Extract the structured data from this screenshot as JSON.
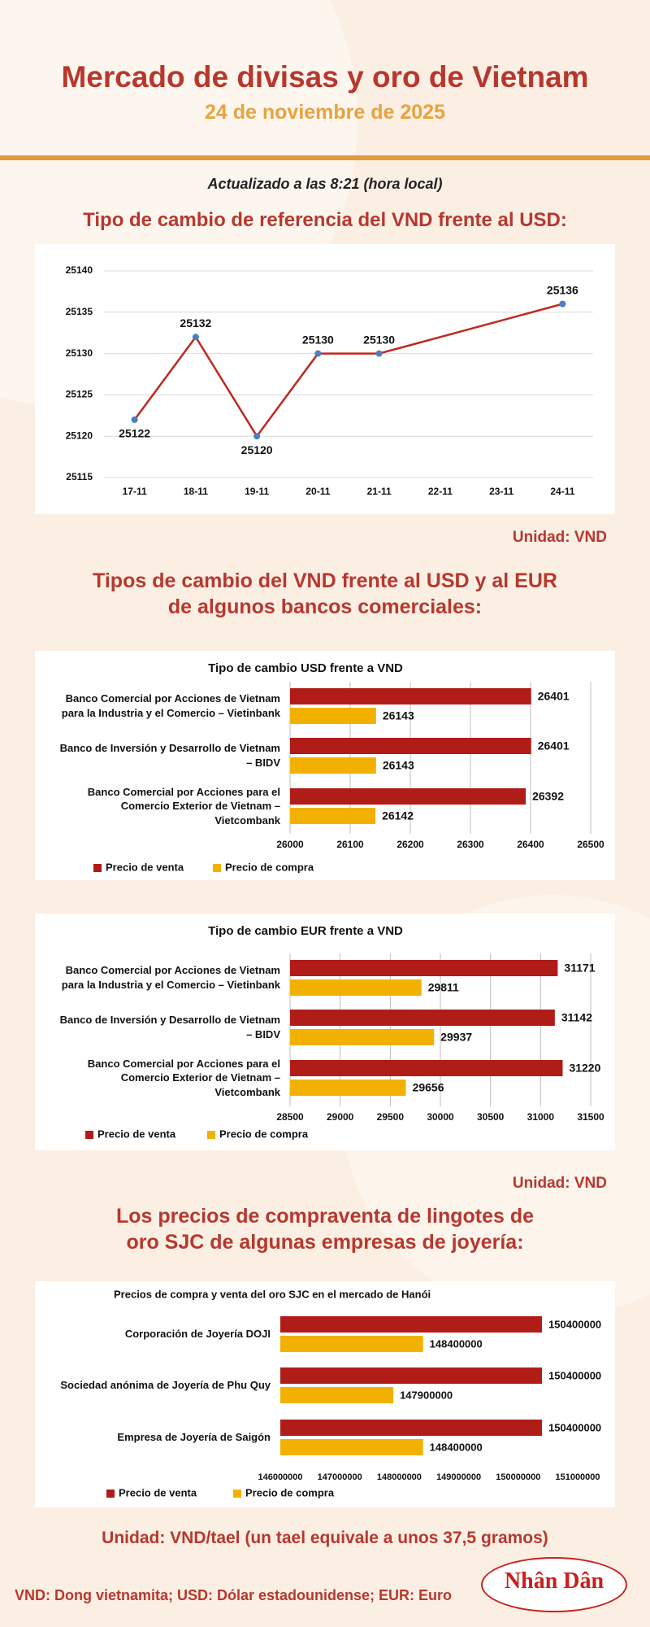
{
  "header": {
    "title": "Mercado de divisas y oro de Vietnam",
    "date": "24 de noviembre de 2025"
  },
  "updated": "Actualizado a las 8:21 (hora local)",
  "section_titles": [
    "Tipo de cambio de referencia del VND frente al USD:",
    "Tipos de cambio del VND frente al USD y al EUR de algunos bancos comerciales:",
    "Los precios de compraventa de lingotes de oro SJC de algunas empresas de joyería:"
  ],
  "units": [
    "Unidad: VND",
    "Unidad: VND",
    "Unidad: VND/tael (un tael equivale a unos 37,5 gramos)"
  ],
  "footer": "VND: Dong vietnamita; USD: Dólar estadounidense; EUR: Euro",
  "logo": "Nhân Dân",
  "chart_data": [
    {
      "type": "line",
      "categories": [
        "17-11",
        "18-11",
        "19-11",
        "20-11",
        "21-11",
        "22-11",
        "23-11",
        "24-11"
      ],
      "series": [
        {
          "color": "#c0281f",
          "marker_color": "#4a7fc1",
          "values": [
            25122,
            25132,
            25120,
            25130,
            25130,
            null,
            null,
            25136
          ]
        }
      ],
      "connect_gaps": true,
      "ylim": [
        25115,
        25140
      ],
      "yticks": [
        25115,
        25120,
        25125,
        25130,
        25135,
        25140
      ],
      "grid": true
    },
    {
      "type": "barh",
      "title": "Tipo de cambio USD frente a VND",
      "categories": [
        "Banco Comercial por Acciones de Vietnam para la Industria y el Comercio – Vietinbank",
        "Banco de Inversión y Desarrollo de Vietnam – BIDV",
        "Banco Comercial por Acciones para el Comercio Exterior de Vietnam – Vietcombank"
      ],
      "series": [
        {
          "name": "Precio de venta",
          "color": "#b01c17",
          "values": [
            26401,
            26401,
            26392
          ]
        },
        {
          "name": "Precio de compra",
          "color": "#f2b100",
          "values": [
            26143,
            26143,
            26142
          ]
        }
      ],
      "xlim": [
        26000,
        26500
      ],
      "xticks": [
        26000,
        26100,
        26200,
        26300,
        26400,
        26500
      ],
      "grid": true
    },
    {
      "type": "barh",
      "title": "Tipo de cambio EUR frente a VND",
      "categories": [
        "Banco Comercial por Acciones de Vietnam para la Industria y el Comercio – Vietinbank",
        "Banco de Inversión y Desarrollo de Vietnam – BIDV",
        "Banco Comercial por Acciones para el Comercio Exterior de Vietnam – Vietcombank"
      ],
      "series": [
        {
          "name": "Precio de venta",
          "color": "#b01c17",
          "values": [
            31171,
            31142,
            31220
          ]
        },
        {
          "name": "Precio de compra",
          "color": "#f2b100",
          "values": [
            29811,
            29937,
            29656
          ]
        }
      ],
      "xlim": [
        28500,
        31500
      ],
      "xticks": [
        28500,
        29000,
        29500,
        30000,
        30500,
        31000,
        31500
      ],
      "grid": true
    },
    {
      "type": "barh",
      "title": "Precios de compra y venta del oro SJC en el mercado de Hanói",
      "categories": [
        "Corporación de Joyería DOJI",
        "Sociedad anónima de Joyería de Phu Quy",
        "Empresa de Joyería de Saigón"
      ],
      "series": [
        {
          "name": "Precio de venta",
          "color": "#b01c17",
          "values": [
            150400000,
            150400000,
            150400000
          ]
        },
        {
          "name": "Precio de compra",
          "color": "#f2b100",
          "values": [
            148400000,
            147900000,
            148400000
          ]
        }
      ],
      "xlim": [
        146000000,
        151000000
      ],
      "xticks": [
        146000000,
        147000000,
        148000000,
        149000000,
        150000000,
        151000000
      ],
      "grid": false
    }
  ]
}
